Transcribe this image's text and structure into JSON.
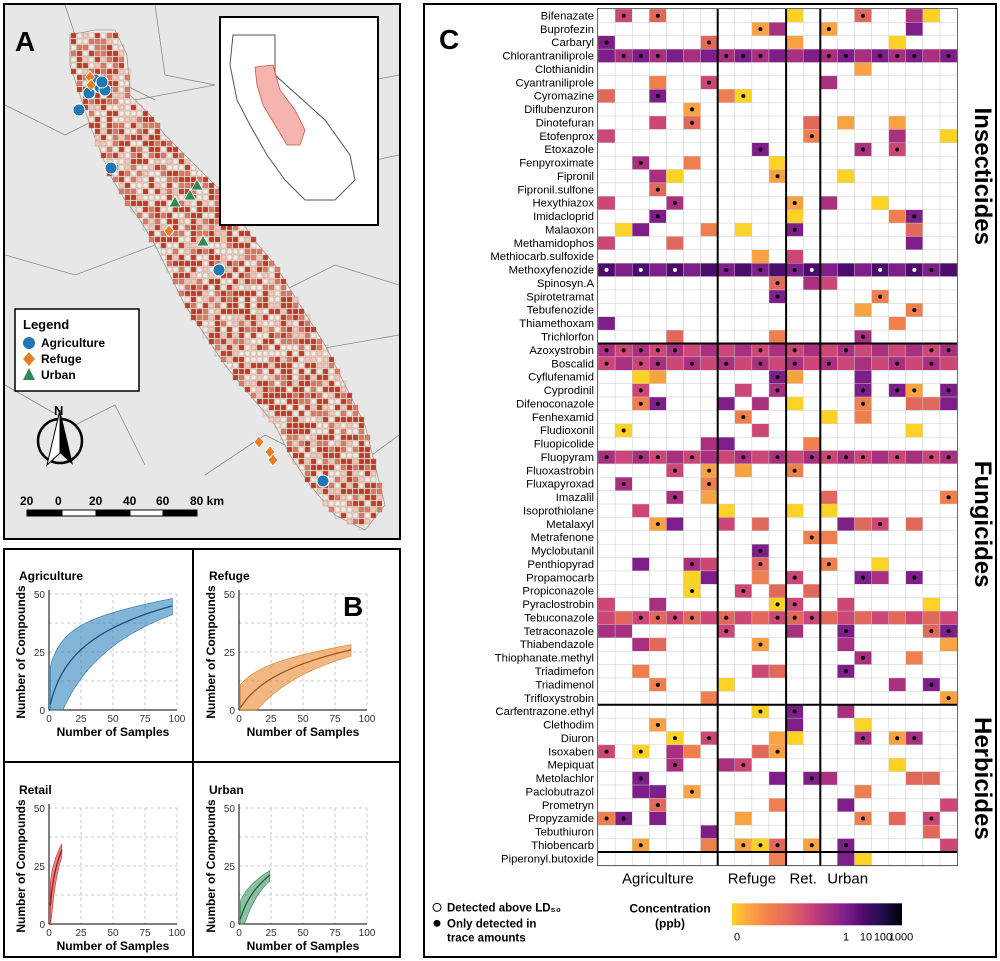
{
  "colors": {
    "agriculture": "#1f77b4",
    "refuge": "#e67e22",
    "urban": "#2e8b57",
    "retail": "#d62728",
    "map_bg": "#e7e7e7",
    "county_grid": "#c0392b"
  },
  "panel_a": {
    "label": "A",
    "legend": {
      "title": "Legend",
      "items": [
        {
          "name": "Agriculture",
          "shape": "circle",
          "color": "#1f77b4"
        },
        {
          "name": "Refuge",
          "shape": "diamond",
          "color": "#e67e22"
        },
        {
          "name": "Urban",
          "shape": "triangle",
          "color": "#2e8b57"
        }
      ]
    },
    "north": "N",
    "scale_ticks": [
      "20",
      "0",
      "20",
      "40",
      "60",
      "80 km"
    ]
  },
  "panel_b": {
    "label": "B",
    "ylabel": "Number of Compounds",
    "xlabel": "Number of Samples",
    "x_ticks": [
      "0",
      "25",
      "50",
      "75",
      "100"
    ],
    "y_ticks": [
      "0",
      "25",
      "50"
    ],
    "plots": [
      {
        "title": "Agriculture",
        "color": "#1f77b4",
        "n": 97,
        "max": 45,
        "k": 6
      },
      {
        "title": "Refuge",
        "color": "#e67e22",
        "n": 88,
        "max": 26,
        "k": 14
      },
      {
        "title": "Retail",
        "color": "#d62728",
        "n": 10,
        "max": 32,
        "k": 1.5
      },
      {
        "title": "Urban",
        "color": "#2e8b57",
        "n": 24,
        "max": 21,
        "k": 6
      }
    ]
  },
  "panel_c": {
    "label": "C",
    "compounds": [
      "Bifenazate",
      "Buprofezin",
      "Carbaryl",
      "Chlorantraniliprole",
      "Clothianidin",
      "Cyantraniliprole",
      "Cyromazine",
      "Diflubenzuron",
      "Dinotefuran",
      "Etofenprox",
      "Etoxazole",
      "Fenpyroximate",
      "Fipronil",
      "Fipronil.sulfone",
      "Hexythiazox",
      "Imidacloprid",
      "Malaoxon",
      "Methamidophos",
      "Methiocarb.sulfoxide",
      "Methoxyfenozide",
      "Spinosyn.A",
      "Spirotetramat",
      "Tebufenozide",
      "Thiamethoxam",
      "Trichlorfon",
      "Azoxystrobin",
      "Boscalid",
      "Cyflufenamid",
      "Cyprodinil",
      "Difenoconazole",
      "Fenhexamid",
      "Fludioxonil",
      "Fluopicolide",
      "Fluopyram",
      "Fluoxastrobin",
      "Fluxapyroxad",
      "Imazalil",
      "Isoprothiolane",
      "Metalaxyl",
      "Metrafenone",
      "Myclobutanil",
      "Penthiopyrad",
      "Propamocarb",
      "Propiconazole",
      "Pyraclostrobin",
      "Tebuconazole",
      "Tetraconazole",
      "Thiabendazole",
      "Thiophanate.methyl",
      "Triadimefon",
      "Triadimenol",
      "Trifloxystrobin",
      "Carfentrazone.ethyl",
      "Clethodim",
      "Diuron",
      "Isoxaben",
      "Mepiquat",
      "Metolachlor",
      "Paclobutrazol",
      "Prometryn",
      "Propyzamide",
      "Tebuthiuron",
      "Thiobencarb",
      "Piperonyl.butoxide"
    ],
    "groups": [
      {
        "name": "Insecticides",
        "start": 0,
        "end": 24
      },
      {
        "name": "Fungicides",
        "start": 25,
        "end": 51
      },
      {
        "name": "Herbicides",
        "start": 52,
        "end": 62
      }
    ],
    "site_groups": [
      "Agriculture",
      "Refuge",
      "Ret.",
      "Urban"
    ],
    "column_blocks": [
      7,
      4,
      2,
      4
    ],
    "colorbar": {
      "title": "Concentration\n(ppb)",
      "ticks": [
        "0",
        "1",
        "10",
        "100",
        "1000"
      ]
    },
    "dot_legend": {
      "open": "Detected above LD₅₀",
      "filled_1": "Only detected in",
      "filled_2": "trace amounts"
    }
  }
}
